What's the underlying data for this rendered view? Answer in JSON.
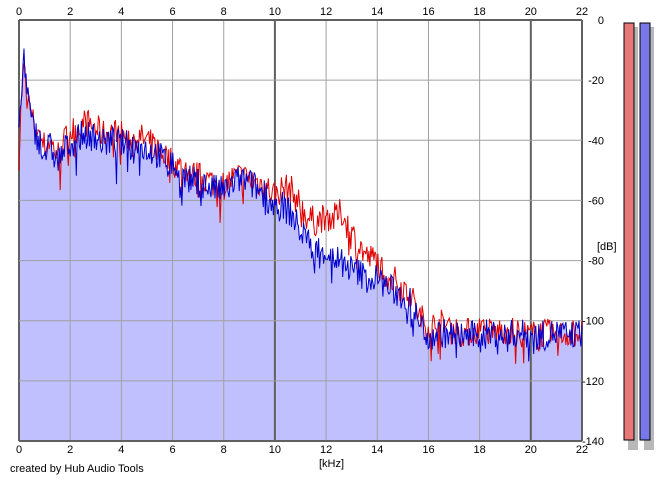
{
  "chart_data": {
    "type": "line",
    "xlabel": "[kHz]",
    "ylabel": "[dB]",
    "xlim": [
      0,
      22
    ],
    "ylim": [
      -140,
      0
    ],
    "x_ticks": [
      0,
      2,
      4,
      6,
      8,
      10,
      12,
      14,
      16,
      18,
      20,
      22
    ],
    "y_ticks": [
      0,
      -20,
      -40,
      -60,
      -80,
      -100,
      -120,
      -140
    ],
    "grid": true,
    "fill_color": "#c0c0ff",
    "series": [
      {
        "color": "#e00000",
        "x": [
          0,
          0.1,
          0.2,
          0.3,
          0.5,
          0.8,
          1.0,
          1.2,
          1.5,
          1.8,
          2.0,
          2.3,
          2.6,
          3.0,
          3.3,
          3.6,
          4.0,
          4.3,
          4.6,
          5.0,
          5.3,
          5.6,
          6.0,
          6.3,
          6.6,
          7.0,
          7.3,
          7.6,
          8.0,
          8.3,
          8.6,
          9.0,
          9.3,
          9.6,
          10.0,
          10.3,
          10.6,
          11.0,
          11.3,
          11.6,
          12.0,
          12.3,
          12.6,
          13.0,
          13.3,
          13.6,
          14.0,
          14.3,
          14.6,
          15.0,
          15.3,
          15.6,
          16.0,
          16.5,
          17.0,
          17.5,
          18.0,
          18.5,
          19.0,
          19.5,
          20.0,
          20.5,
          21.0,
          21.5,
          22.0
        ],
        "values": [
          -45,
          -25,
          -16,
          -24,
          -33,
          -38,
          -42,
          -40,
          -45,
          -40,
          -37,
          -36,
          -34,
          -36,
          -38,
          -37,
          -38,
          -40,
          -39,
          -40,
          -42,
          -44,
          -47,
          -49,
          -51,
          -52,
          -53,
          -54,
          -55,
          -53,
          -52,
          -53,
          -54,
          -55,
          -58,
          -56,
          -56,
          -62,
          -66,
          -67,
          -65,
          -66,
          -64,
          -71,
          -75,
          -79,
          -80,
          -84,
          -86,
          -89,
          -91,
          -98,
          -102,
          -101,
          -103,
          -104,
          -103,
          -104,
          -103,
          -104,
          -105,
          -104,
          -105,
          -104,
          -104
        ]
      },
      {
        "color": "#0000cc",
        "x": [
          0,
          0.1,
          0.2,
          0.3,
          0.5,
          0.8,
          1.0,
          1.2,
          1.5,
          1.8,
          2.0,
          2.3,
          2.6,
          3.0,
          3.3,
          3.6,
          4.0,
          4.3,
          4.6,
          5.0,
          5.3,
          5.6,
          6.0,
          6.3,
          6.6,
          7.0,
          7.3,
          7.6,
          8.0,
          8.3,
          8.6,
          9.0,
          9.3,
          9.6,
          10.0,
          10.3,
          10.6,
          11.0,
          11.3,
          11.6,
          12.0,
          12.3,
          12.6,
          13.0,
          13.3,
          13.6,
          14.0,
          14.3,
          14.6,
          15.0,
          15.3,
          15.6,
          16.0,
          16.5,
          17.0,
          17.5,
          18.0,
          18.5,
          19.0,
          19.5,
          20.0,
          20.5,
          21.0,
          21.5,
          22.0
        ],
        "values": [
          -40,
          -22,
          -12,
          -22,
          -35,
          -40,
          -44,
          -42,
          -47,
          -43,
          -41,
          -39,
          -38,
          -39,
          -41,
          -40,
          -41,
          -42,
          -42,
          -43,
          -44,
          -46,
          -48,
          -51,
          -53,
          -54,
          -55,
          -56,
          -57,
          -55,
          -53,
          -54,
          -56,
          -58,
          -62,
          -62,
          -64,
          -70,
          -74,
          -76,
          -77,
          -79,
          -80,
          -83,
          -84,
          -86,
          -86,
          -88,
          -90,
          -92,
          -94,
          -100,
          -105,
          -104,
          -105,
          -105,
          -105,
          -104,
          -105,
          -104,
          -105,
          -105,
          -104,
          -105,
          -104
        ]
      }
    ],
    "meters": [
      {
        "channel": "left",
        "color": "#e87878",
        "level": 0
      },
      {
        "channel": "right",
        "color": "#7878e8",
        "level": 0
      }
    ]
  },
  "footer": {
    "credit": "created by Hub Audio Tools"
  }
}
